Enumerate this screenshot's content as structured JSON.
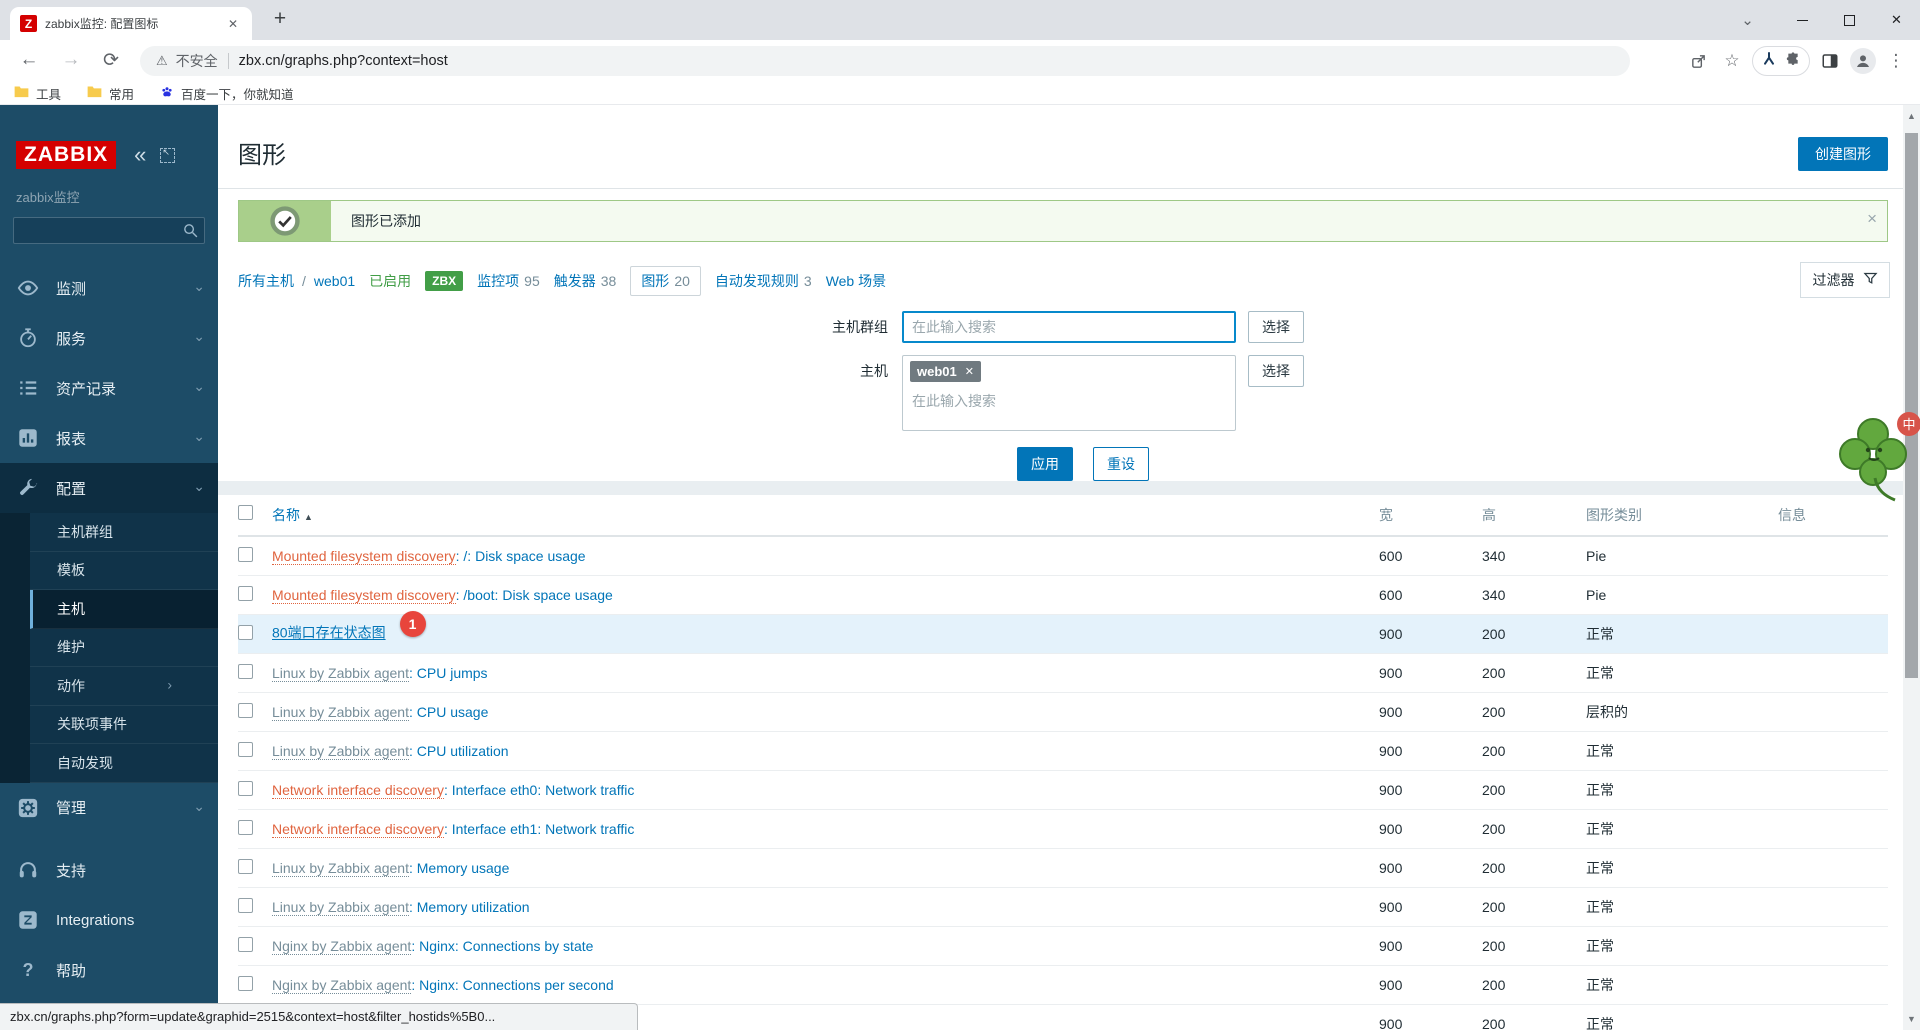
{
  "browser": {
    "tab_title": "zabbix监控: 配置图标",
    "favicon_letter": "Z",
    "security_label": "不安全",
    "url": "zbx.cn/graphs.php?context=host",
    "bookmarks": [
      {
        "label": "工具",
        "icon": "folder-icon"
      },
      {
        "label": "常用",
        "icon": "folder-icon"
      },
      {
        "label": "百度一下，你就知道",
        "icon": "paw-icon"
      }
    ],
    "status_text": "zbx.cn/graphs.php?form=update&graphid=2515&context=host&filter_hostids%5B0..."
  },
  "icons": {
    "close": "✕",
    "new_tab": "+",
    "menu": "⋮",
    "back": "←",
    "forward": "→",
    "reload": "⟳",
    "warning": "⚠",
    "star": "☆",
    "collapse": "«",
    "sort_asc": "▲",
    "chevron_down": "⌄",
    "chevron_right": "›",
    "question": "?",
    "scroll_up": "▲",
    "scroll_down": "▼",
    "window_chevron": "⌄",
    "chip_close": "✕",
    "banner_close": "×"
  },
  "sidebar": {
    "logo": "ZABBIX",
    "subtitle": "zabbix监控",
    "main_items": [
      {
        "label": "监测",
        "icon": "eye-icon",
        "chevron": "down"
      },
      {
        "label": "服务",
        "icon": "stopwatch-icon",
        "chevron": "down"
      },
      {
        "label": "资产记录",
        "icon": "list-icon",
        "chevron": "down"
      },
      {
        "label": "报表",
        "icon": "chart-icon",
        "chevron": "down"
      },
      {
        "label": "配置",
        "icon": "wrench-icon",
        "chevron": "down",
        "active": true
      }
    ],
    "config_submenu": [
      {
        "label": "主机群组"
      },
      {
        "label": "模板"
      },
      {
        "label": "主机",
        "selected": true
      },
      {
        "label": "维护"
      },
      {
        "label": "动作",
        "chevron": "right"
      },
      {
        "label": "关联项事件"
      },
      {
        "label": "自动发现"
      }
    ],
    "admin_item": {
      "label": "管理",
      "icon": "gear-icon",
      "chevron": "down"
    },
    "footer_items": [
      {
        "label": "支持",
        "icon": "headset-icon"
      },
      {
        "label": "Integrations",
        "icon": "zabbix-mark-icon"
      },
      {
        "label": "帮助",
        "icon": "question-icon"
      }
    ]
  },
  "header": {
    "title": "图形",
    "create_button": "创建图形"
  },
  "message": {
    "text": "图形已添加"
  },
  "breadcrumb": [
    {
      "type": "link",
      "label": "所有主机"
    },
    {
      "type": "sep",
      "label": "/"
    },
    {
      "type": "link",
      "label": "web01"
    },
    {
      "type": "status-green",
      "label": "已启用"
    },
    {
      "type": "badge-green",
      "label": "ZBX"
    },
    {
      "type": "link-count",
      "label": "监控项",
      "count": "95"
    },
    {
      "type": "link-count",
      "label": "触发器",
      "count": "38"
    },
    {
      "type": "link-count-selected",
      "label": "图形",
      "count": "20"
    },
    {
      "type": "link-count",
      "label": "自动发现规则",
      "count": "3"
    },
    {
      "type": "link",
      "label": "Web 场景"
    }
  ],
  "filter": {
    "tab_label": "过滤器",
    "host_group_label": "主机群组",
    "host_label": "主机",
    "search_placeholder": "在此输入搜索",
    "host_chip": "web01",
    "select_button": "选择",
    "apply_button": "应用",
    "reset_button": "重设"
  },
  "table": {
    "headers": {
      "name": "名称",
      "width": "宽",
      "height": "高",
      "type": "图形类别",
      "info": "信息"
    },
    "rows": [
      {
        "prefix": "Mounted filesystem discovery",
        "prefix_style": "orange",
        "name": ": /: Disk space usage",
        "width": "600",
        "height": "340",
        "type": "Pie",
        "info": ""
      },
      {
        "prefix": "Mounted filesystem discovery",
        "prefix_style": "orange",
        "name": ": /boot: Disk space usage",
        "width": "600",
        "height": "340",
        "type": "Pie",
        "info": ""
      },
      {
        "prefix": "",
        "prefix_style": "",
        "name": "80端口存在状态图",
        "width": "900",
        "height": "200",
        "type": "正常",
        "info": "",
        "highlighted": true,
        "badge": "1",
        "underline": true
      },
      {
        "prefix": "Linux by Zabbix agent",
        "prefix_style": "gray",
        "name": ": CPU jumps",
        "width": "900",
        "height": "200",
        "type": "正常",
        "info": ""
      },
      {
        "prefix": "Linux by Zabbix agent",
        "prefix_style": "gray",
        "name": ": CPU usage",
        "width": "900",
        "height": "200",
        "type": "层积的",
        "info": ""
      },
      {
        "prefix": "Linux by Zabbix agent",
        "prefix_style": "gray",
        "name": ": CPU utilization",
        "width": "900",
        "height": "200",
        "type": "正常",
        "info": ""
      },
      {
        "prefix": "Network interface discovery",
        "prefix_style": "orange",
        "name": ": Interface eth0: Network traffic",
        "width": "900",
        "height": "200",
        "type": "正常",
        "info": ""
      },
      {
        "prefix": "Network interface discovery",
        "prefix_style": "orange",
        "name": ": Interface eth1: Network traffic",
        "width": "900",
        "height": "200",
        "type": "正常",
        "info": ""
      },
      {
        "prefix": "Linux by Zabbix agent",
        "prefix_style": "gray",
        "name": ": Memory usage",
        "width": "900",
        "height": "200",
        "type": "正常",
        "info": ""
      },
      {
        "prefix": "Linux by Zabbix agent",
        "prefix_style": "gray",
        "name": ": Memory utilization",
        "width": "900",
        "height": "200",
        "type": "正常",
        "info": ""
      },
      {
        "prefix": "Nginx by Zabbix agent",
        "prefix_style": "gray",
        "name": ": Nginx: Connections by state",
        "width": "900",
        "height": "200",
        "type": "正常",
        "info": ""
      },
      {
        "prefix": "Nginx by Zabbix agent",
        "prefix_style": "gray",
        "name": ": Nginx: Connections per second",
        "width": "900",
        "height": "200",
        "type": "正常",
        "info": ""
      },
      {
        "prefix": "",
        "prefix_style": "",
        "name": "",
        "width": "900",
        "height": "200",
        "type": "正常",
        "info": ""
      }
    ]
  },
  "colors": {
    "accent": "#0275b8",
    "green": "#429e47",
    "orange": "#e0643f",
    "badge_red": "#e8453c",
    "sidebar": "#1d4c67"
  }
}
